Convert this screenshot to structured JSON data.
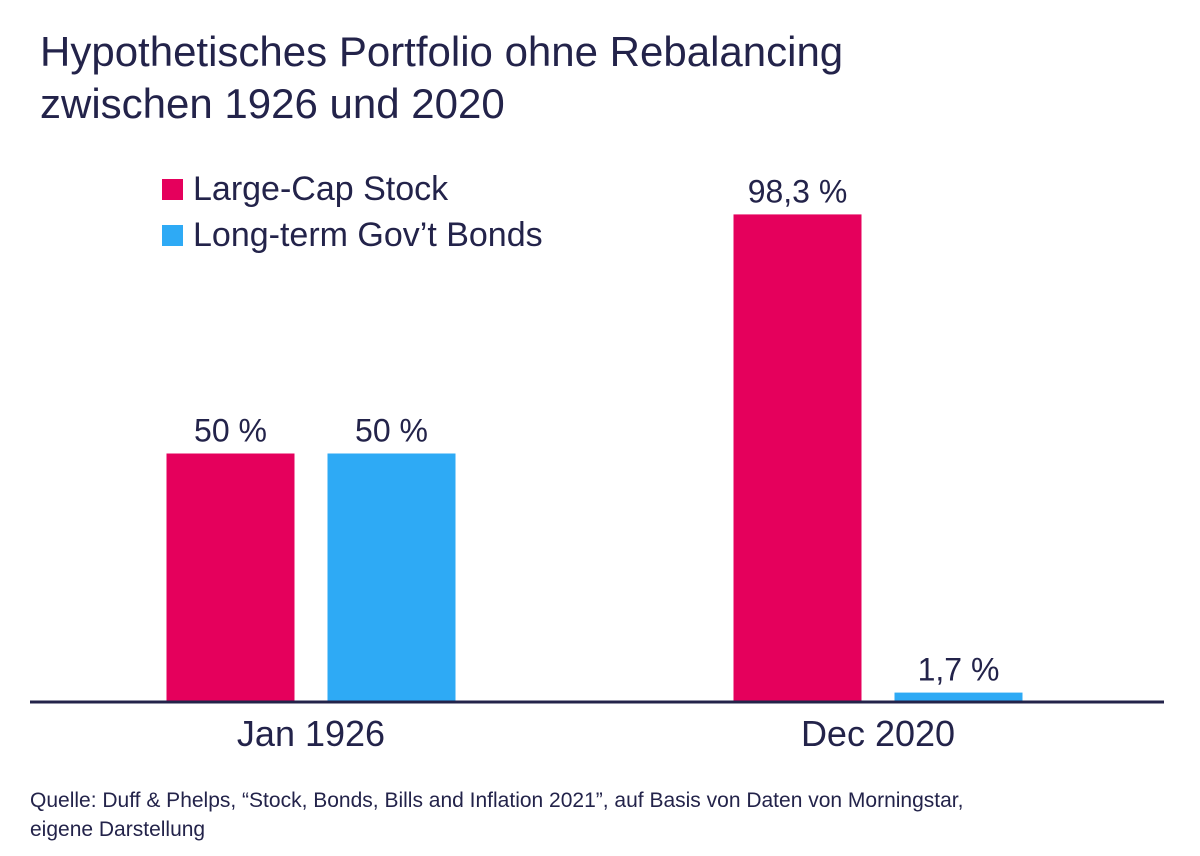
{
  "title": {
    "line1": "Hypothetisches Portfolio ohne Rebalancing",
    "line2": "zwischen 1926 und 2020"
  },
  "source": {
    "line1": "Quelle: Duff & Phelps, “Stock, Bonds, Bills and Inflation 2021”, auf Basis von Daten von Morningstar,",
    "line2": "eigene Darstellung"
  },
  "colors": {
    "stocks": "#e5005c",
    "bonds": "#2eaaf5",
    "axis": "#23234a",
    "text": "#23234a"
  },
  "chart_data": {
    "type": "bar",
    "categories": [
      "Jan 1926",
      "Dec 2020"
    ],
    "series": [
      {
        "name": "Large-Cap Stock",
        "values": [
          50,
          98.3
        ],
        "labels": [
          "50 %",
          "98,3 %"
        ],
        "color": "#e5005c"
      },
      {
        "name": "Long-term Gov’t Bonds",
        "values": [
          50,
          1.7
        ],
        "labels": [
          "50 %",
          "1,7 %"
        ],
        "color": "#2eaaf5"
      }
    ],
    "ylim": [
      0,
      100
    ],
    "grid": false,
    "legend": "top-left",
    "xlabel": "",
    "ylabel": ""
  }
}
